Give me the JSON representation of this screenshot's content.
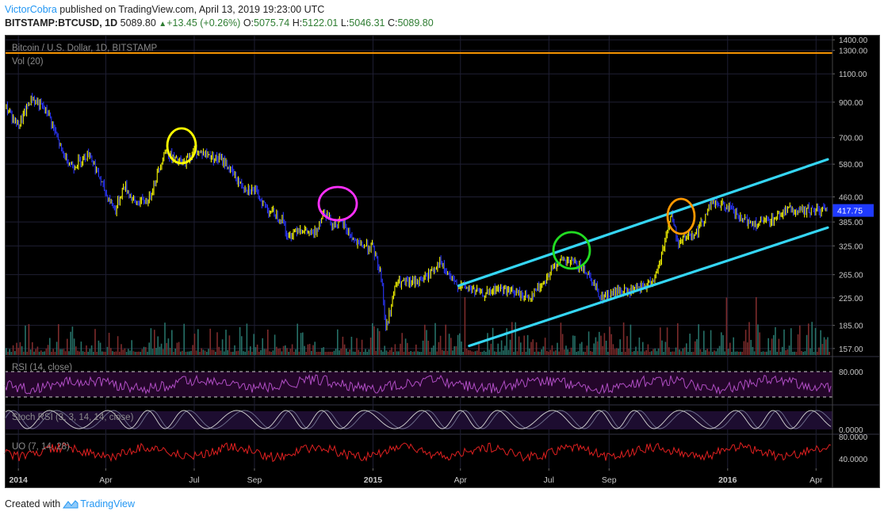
{
  "header": {
    "author": "VictorCobra",
    "published": " published on TradingView.com, April 13, 2019 19:23:00 UTC",
    "symbol": "BITSTAMP:BTCUSD, 1D",
    "last": "5089.80",
    "change": "+13.45 (+0.26%)",
    "o_label": "O:",
    "o_value": "5075.74",
    "h_label": "H:",
    "h_value": "5122.01",
    "l_label": "L:",
    "l_value": "5046.31",
    "c_label": "C:",
    "c_value": "5089.80"
  },
  "footer": {
    "created_with": "Created with",
    "brand": "TradingView"
  },
  "colors": {
    "background": "#000000",
    "grid": "#1f1f33",
    "bull": "#f5f500",
    "bear": "#2b36ff",
    "resistance": "#ff9800",
    "channel": "#35d6f5",
    "last_price_bg": "#1f3aff",
    "rsi": "#b04ec4",
    "stoch_k": "#c8c8c8",
    "stoch_d": "#6b6b8a",
    "uo": "#e02020",
    "circle_yellow": "#ffff00",
    "circle_magenta": "#ff30ff",
    "circle_green": "#22dd22",
    "circle_orange": "#ff9800"
  },
  "chart_data": [
    {
      "type": "line",
      "title": "Bitcoin / U.S. Dollar, 1D, BITSTAMP",
      "scale": "log",
      "x_ticks": [
        "2014",
        "Apr",
        "Jul",
        "Sep",
        "2015",
        "Apr",
        "Jul",
        "Sep",
        "2016",
        "Apr"
      ],
      "y_ticks": [
        1400,
        1300,
        1100,
        900,
        700,
        580,
        460,
        385,
        325,
        265,
        225,
        185,
        157
      ],
      "y_tick_labels": [
        "1400.00",
        "1300.00",
        "1100.00",
        "900.00",
        "700.00",
        "580.00",
        "460.00",
        "385.00",
        "325.00",
        "265.00",
        "225.00",
        "185.00",
        "157.00"
      ],
      "ylim": [
        150,
        1450
      ],
      "last_price_label": "417.75",
      "series": [
        {
          "style": "candles",
          "x": [
            "2013-12-18",
            "2014-01-01",
            "2014-01-15",
            "2014-02-01",
            "2014-02-15",
            "2014-02-26",
            "2014-03-15",
            "2014-04-01",
            "2014-04-11",
            "2014-04-20",
            "2014-05-01",
            "2014-05-15",
            "2014-06-01",
            "2014-06-10",
            "2014-06-20",
            "2014-07-01",
            "2014-07-15",
            "2014-08-01",
            "2014-08-18",
            "2014-09-01",
            "2014-09-15",
            "2014-10-01",
            "2014-10-05",
            "2014-10-15",
            "2014-11-01",
            "2014-11-12",
            "2014-11-20",
            "2014-12-01",
            "2014-12-15",
            "2015-01-01",
            "2015-01-10",
            "2015-01-14",
            "2015-01-25",
            "2015-02-10",
            "2015-02-25",
            "2015-03-10",
            "2015-03-25",
            "2015-04-10",
            "2015-04-25",
            "2015-05-10",
            "2015-05-25",
            "2015-06-10",
            "2015-06-25",
            "2015-07-10",
            "2015-07-25",
            "2015-08-10",
            "2015-08-24",
            "2015-09-10",
            "2015-09-25",
            "2015-10-10",
            "2015-10-20",
            "2015-11-04",
            "2015-11-11",
            "2015-11-20",
            "2015-12-01",
            "2015-12-15",
            "2016-01-01",
            "2016-01-15",
            "2016-02-01",
            "2016-02-15",
            "2016-03-01",
            "2016-03-15",
            "2016-04-01",
            "2016-04-13"
          ],
          "y": [
            880,
            760,
            930,
            830,
            630,
            570,
            630,
            470,
            420,
            500,
            440,
            450,
            640,
            600,
            580,
            640,
            620,
            590,
            500,
            480,
            420,
            390,
            340,
            370,
            350,
            420,
            380,
            380,
            330,
            320,
            260,
            180,
            250,
            250,
            260,
            290,
            250,
            240,
            230,
            240,
            235,
            225,
            250,
            290,
            290,
            270,
            225,
            235,
            235,
            245,
            265,
            410,
            330,
            350,
            360,
            440,
            430,
            390,
            380,
            390,
            420,
            415,
            420,
            417.75
          ]
        }
      ],
      "drawings": [
        {
          "type": "horizontal_line",
          "label": "resistance",
          "y": 1275
        },
        {
          "type": "trend_line",
          "label": "channel_upper",
          "x": [
            "2015-03-30",
            "2016-04-13"
          ],
          "y": [
            245,
            600
          ]
        },
        {
          "type": "trend_line",
          "label": "channel_lower",
          "x": [
            "2015-04-10",
            "2016-04-13"
          ],
          "y": [
            160,
            370
          ]
        }
      ]
    },
    {
      "type": "bar",
      "title": "Vol (20)",
      "note": "volume histogram in lower part of price pane"
    },
    {
      "type": "line",
      "title": "RSI (14, close)",
      "y_ticks": [
        80,
        0
      ],
      "y_tick_labels": [
        "80.000",
        "0.0000"
      ]
    },
    {
      "type": "line",
      "title": "Stoch RSI (3, 3, 14, 14, close)",
      "y_tick_labels": [
        "0.0000"
      ]
    },
    {
      "type": "line",
      "title": "UO (7, 14, 28)",
      "y_ticks": [
        80,
        40
      ],
      "y_tick_labels": [
        "80.0000",
        "40.0000"
      ]
    }
  ]
}
